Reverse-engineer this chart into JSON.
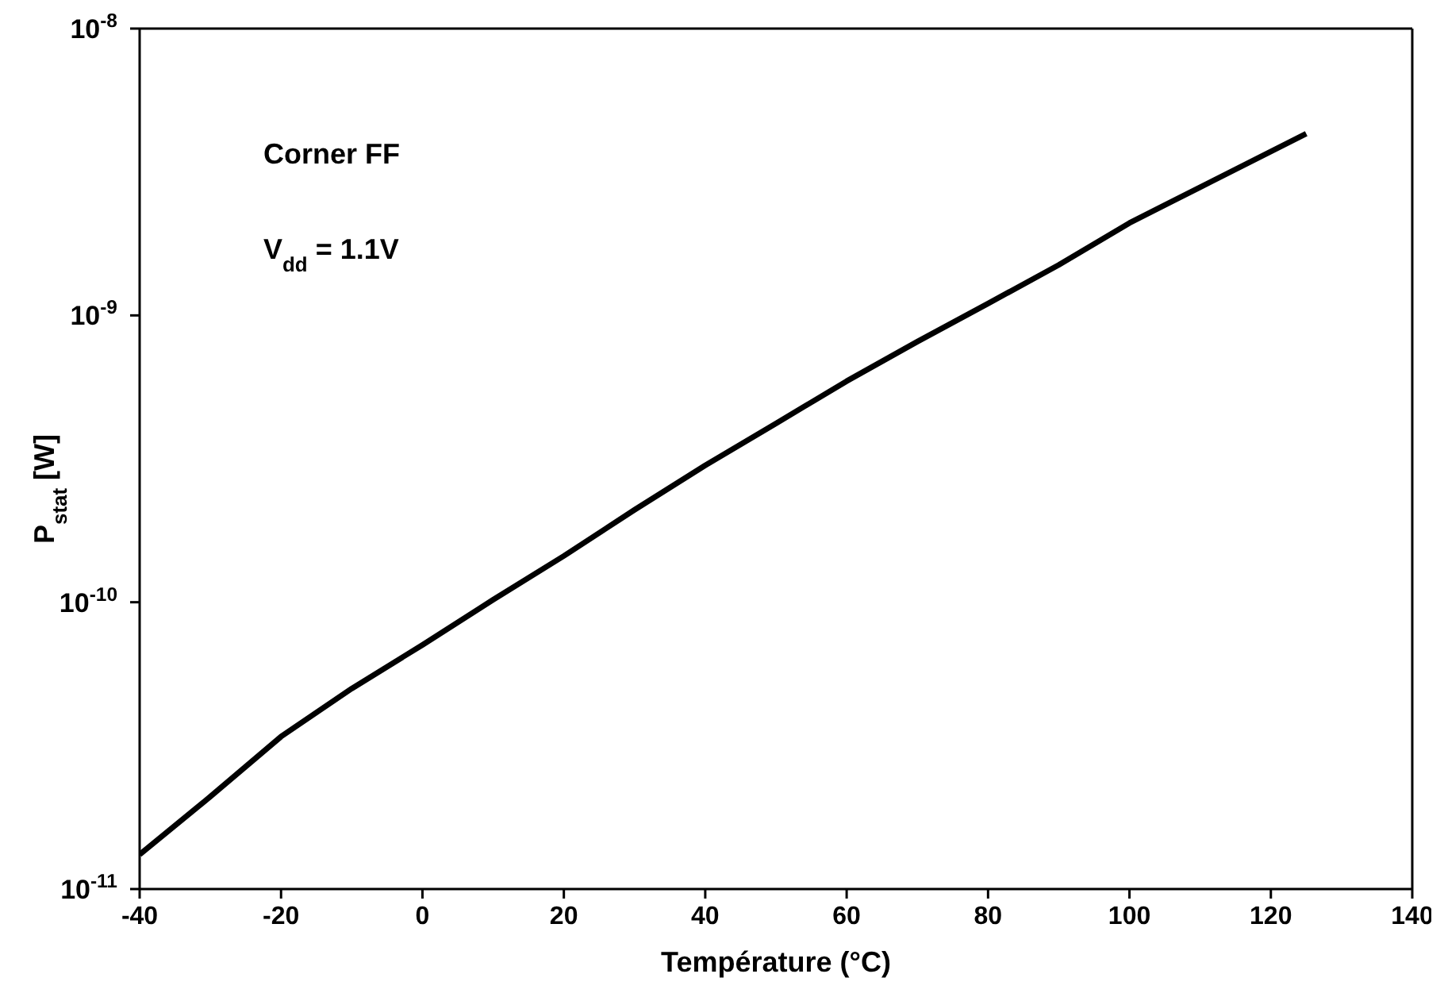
{
  "chart_data": {
    "type": "line",
    "xlabel": "Température (°C)",
    "ylabel": "P$_{stat}$ [W]",
    "annotations": [
      "Corner FF",
      "V$_{dd}$ = 1.1V"
    ],
    "log": "y",
    "marker": "none",
    "line_style": "solid",
    "xlim": [
      -40,
      140
    ],
    "xticks": [
      -40,
      -20,
      0,
      20,
      40,
      60,
      80,
      100,
      120,
      140
    ],
    "ylim": [
      1e-11,
      1e-08
    ],
    "yticks": [
      {
        "value": 1e-11,
        "label": "10$^{-11}$"
      },
      {
        "value": 1e-10,
        "label": "10$^{-10}$"
      },
      {
        "value": 1e-09,
        "label": "10$^{-9}$"
      },
      {
        "value": 1e-08,
        "label": "10$^{-8}$"
      }
    ],
    "x": [
      -40,
      -30,
      -20,
      -10,
      0,
      10,
      20,
      30,
      40,
      50,
      60,
      70,
      80,
      90,
      100,
      110,
      125
    ],
    "series": [
      {
        "color": "#000000",
        "values": [
          1.32e-11,
          2.1e-11,
          3.4e-11,
          5e-11,
          7.1e-11,
          1.02e-10,
          1.45e-10,
          2.1e-10,
          3e-10,
          4.2e-10,
          5.9e-10,
          8.1e-10,
          1.1e-09,
          1.5e-09,
          2.1e-09,
          2.8e-09,
          4.3e-09
        ]
      }
    ]
  }
}
